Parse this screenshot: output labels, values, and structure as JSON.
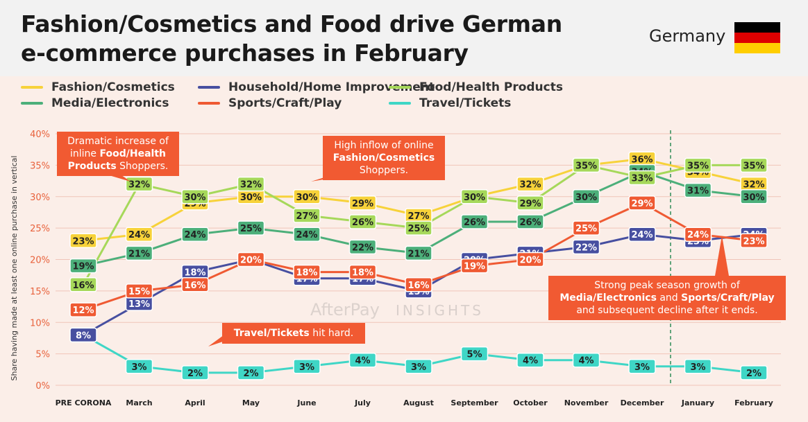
{
  "header": {
    "title_line1": "Fashion/Cosmetics and Food drive German",
    "title_line2": "e-commerce purchases in February",
    "country": "Germany",
    "flag_colors": [
      "#000000",
      "#dd0000",
      "#ffce00"
    ]
  },
  "watermark": {
    "brand": "AfterPay",
    "suffix": "INSIGHTS"
  },
  "callouts": {
    "food": {
      "pre": "Dramatic increase of inline ",
      "bold": "Food/Health Products",
      "post": " Shoppers."
    },
    "fashion": {
      "pre": "High inflow of online ",
      "bold": "Fashion/Cosmetics",
      "post": " Shoppers."
    },
    "travel": {
      "bold": "Travel/Tickets",
      "post": " hit hard."
    },
    "peak": {
      "line1": "Strong peak season growth of",
      "bold1": "Media/Electronics",
      "mid": " and ",
      "bold2": "Sports/Craft/Play",
      "line3": "and subsequent decline after it ends."
    }
  },
  "chart_data": {
    "type": "line",
    "title": "Fashion/Cosmetics and Food drive German e-commerce purchases in February",
    "xlabel": "",
    "ylabel": "Share having made at least one online purchase in vertical",
    "ylim": [
      0,
      40
    ],
    "yticks": [
      0,
      5,
      10,
      15,
      20,
      25,
      30,
      35,
      40
    ],
    "ytick_labels": [
      "0%",
      "5%",
      "10%",
      "15%",
      "20%",
      "25%",
      "30%",
      "35%",
      "40%"
    ],
    "grid": true,
    "legend_position": "top",
    "categories": [
      "PRE CORONA",
      "March",
      "April",
      "May",
      "June",
      "July",
      "August",
      "September",
      "October",
      "November",
      "December",
      "January",
      "February"
    ],
    "series": [
      {
        "name": "Fashion/Cosmetics",
        "color": "#f7d23a",
        "values": [
          23,
          24,
          29,
          30,
          30,
          29,
          27,
          30,
          32,
          35,
          36,
          34,
          32
        ]
      },
      {
        "name": "Sports/Craft/Play",
        "color": "#ef5a33",
        "values": [
          12,
          15,
          16,
          20,
          18,
          18,
          16,
          19,
          20,
          25,
          29,
          24,
          23
        ]
      },
      {
        "name": "Media/Electronics",
        "color": "#4caf7a",
        "values": [
          19,
          21,
          24,
          25,
          24,
          22,
          21,
          26,
          26,
          30,
          34,
          31,
          30
        ]
      },
      {
        "name": "Food/Health Products",
        "color": "#a6d85a",
        "values": [
          16,
          32,
          30,
          32,
          27,
          26,
          25,
          30,
          29,
          35,
          33,
          35,
          35
        ]
      },
      {
        "name": "Household/Home Improvement",
        "color": "#474fa0",
        "values": [
          8,
          13,
          18,
          20,
          17,
          17,
          15,
          20,
          21,
          22,
          24,
          23,
          24
        ]
      },
      {
        "name": "Travel/Tickets",
        "color": "#3fd6c6",
        "values": [
          8,
          3,
          2,
          2,
          3,
          4,
          3,
          5,
          4,
          4,
          3,
          3,
          2
        ]
      }
    ],
    "annotations": [
      "Dramatic increase of inline Food/Health Products Shoppers.",
      "High inflow of online Fashion/Cosmetics Shoppers.",
      "Travel/Tickets hit hard.",
      "Strong peak season growth of Media/Electronics and Sports/Craft/Play and subsequent decline after it ends."
    ],
    "reference_line": {
      "between": [
        "December",
        "January"
      ],
      "style": "dashed"
    }
  }
}
